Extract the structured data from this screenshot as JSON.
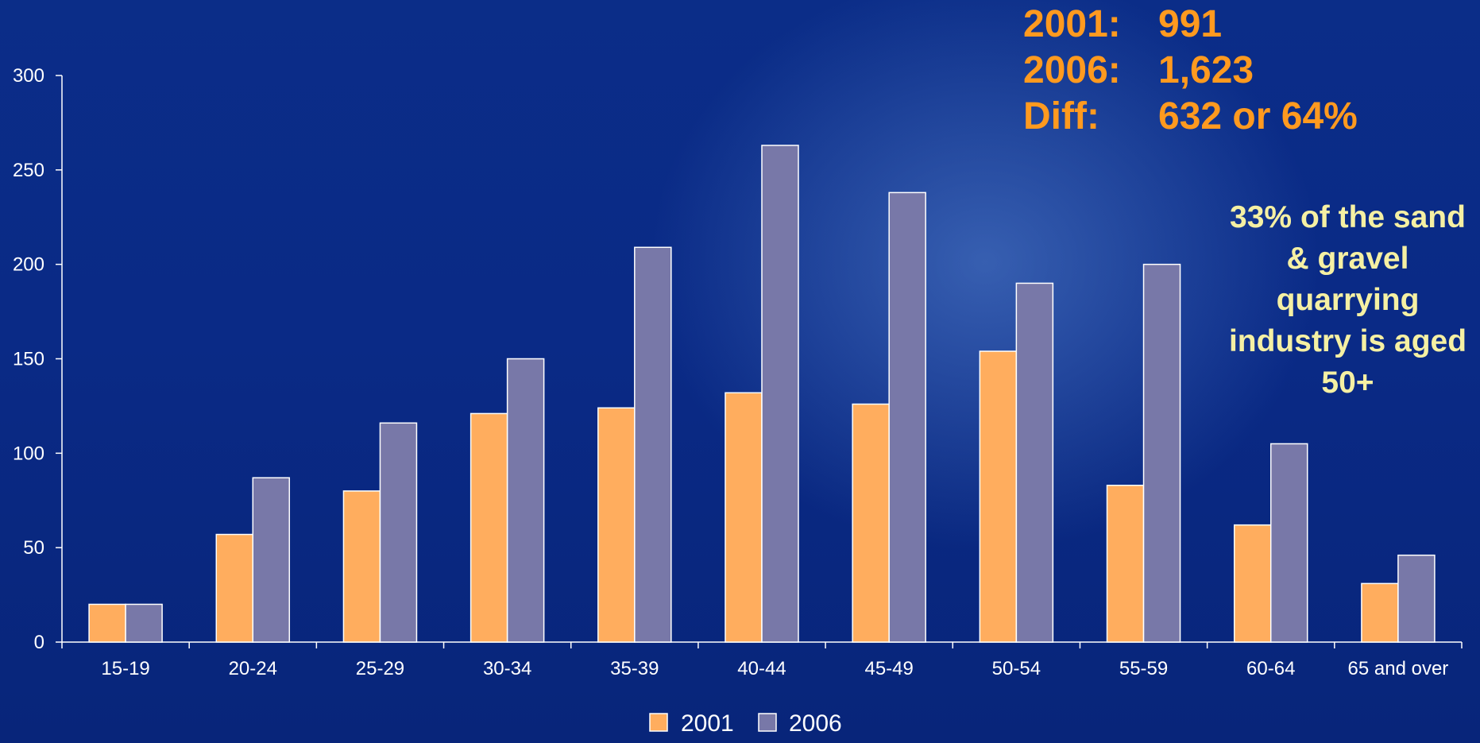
{
  "stats": [
    {
      "label": "2001:",
      "value": "991"
    },
    {
      "label": "2006:",
      "value": "1,623"
    },
    {
      "label": "Diff:",
      "value": "632 or 64%"
    }
  ],
  "note": "33% of the sand & gravel quarrying industry is aged 50+",
  "colors": {
    "series_2001": "#ffad5e",
    "series_2006": "#7878a8",
    "text": "#ffffff",
    "stats": "#ff9a1f",
    "note": "#f5f0a3"
  },
  "chart_data": {
    "type": "bar",
    "categories": [
      "15-19",
      "20-24",
      "25-29",
      "30-34",
      "35-39",
      "40-44",
      "45-49",
      "50-54",
      "55-59",
      "60-64",
      "65  and over"
    ],
    "series": [
      {
        "name": "2001",
        "values": [
          20,
          57,
          80,
          121,
          124,
          132,
          126,
          154,
          83,
          62,
          31
        ]
      },
      {
        "name": "2006",
        "values": [
          20,
          87,
          116,
          150,
          209,
          263,
          238,
          190,
          200,
          105,
          46
        ]
      }
    ],
    "yticks": [
      0,
      50,
      100,
      150,
      200,
      250,
      300
    ],
    "ylim": [
      0,
      300
    ],
    "legend": "bottom",
    "grid": false
  }
}
